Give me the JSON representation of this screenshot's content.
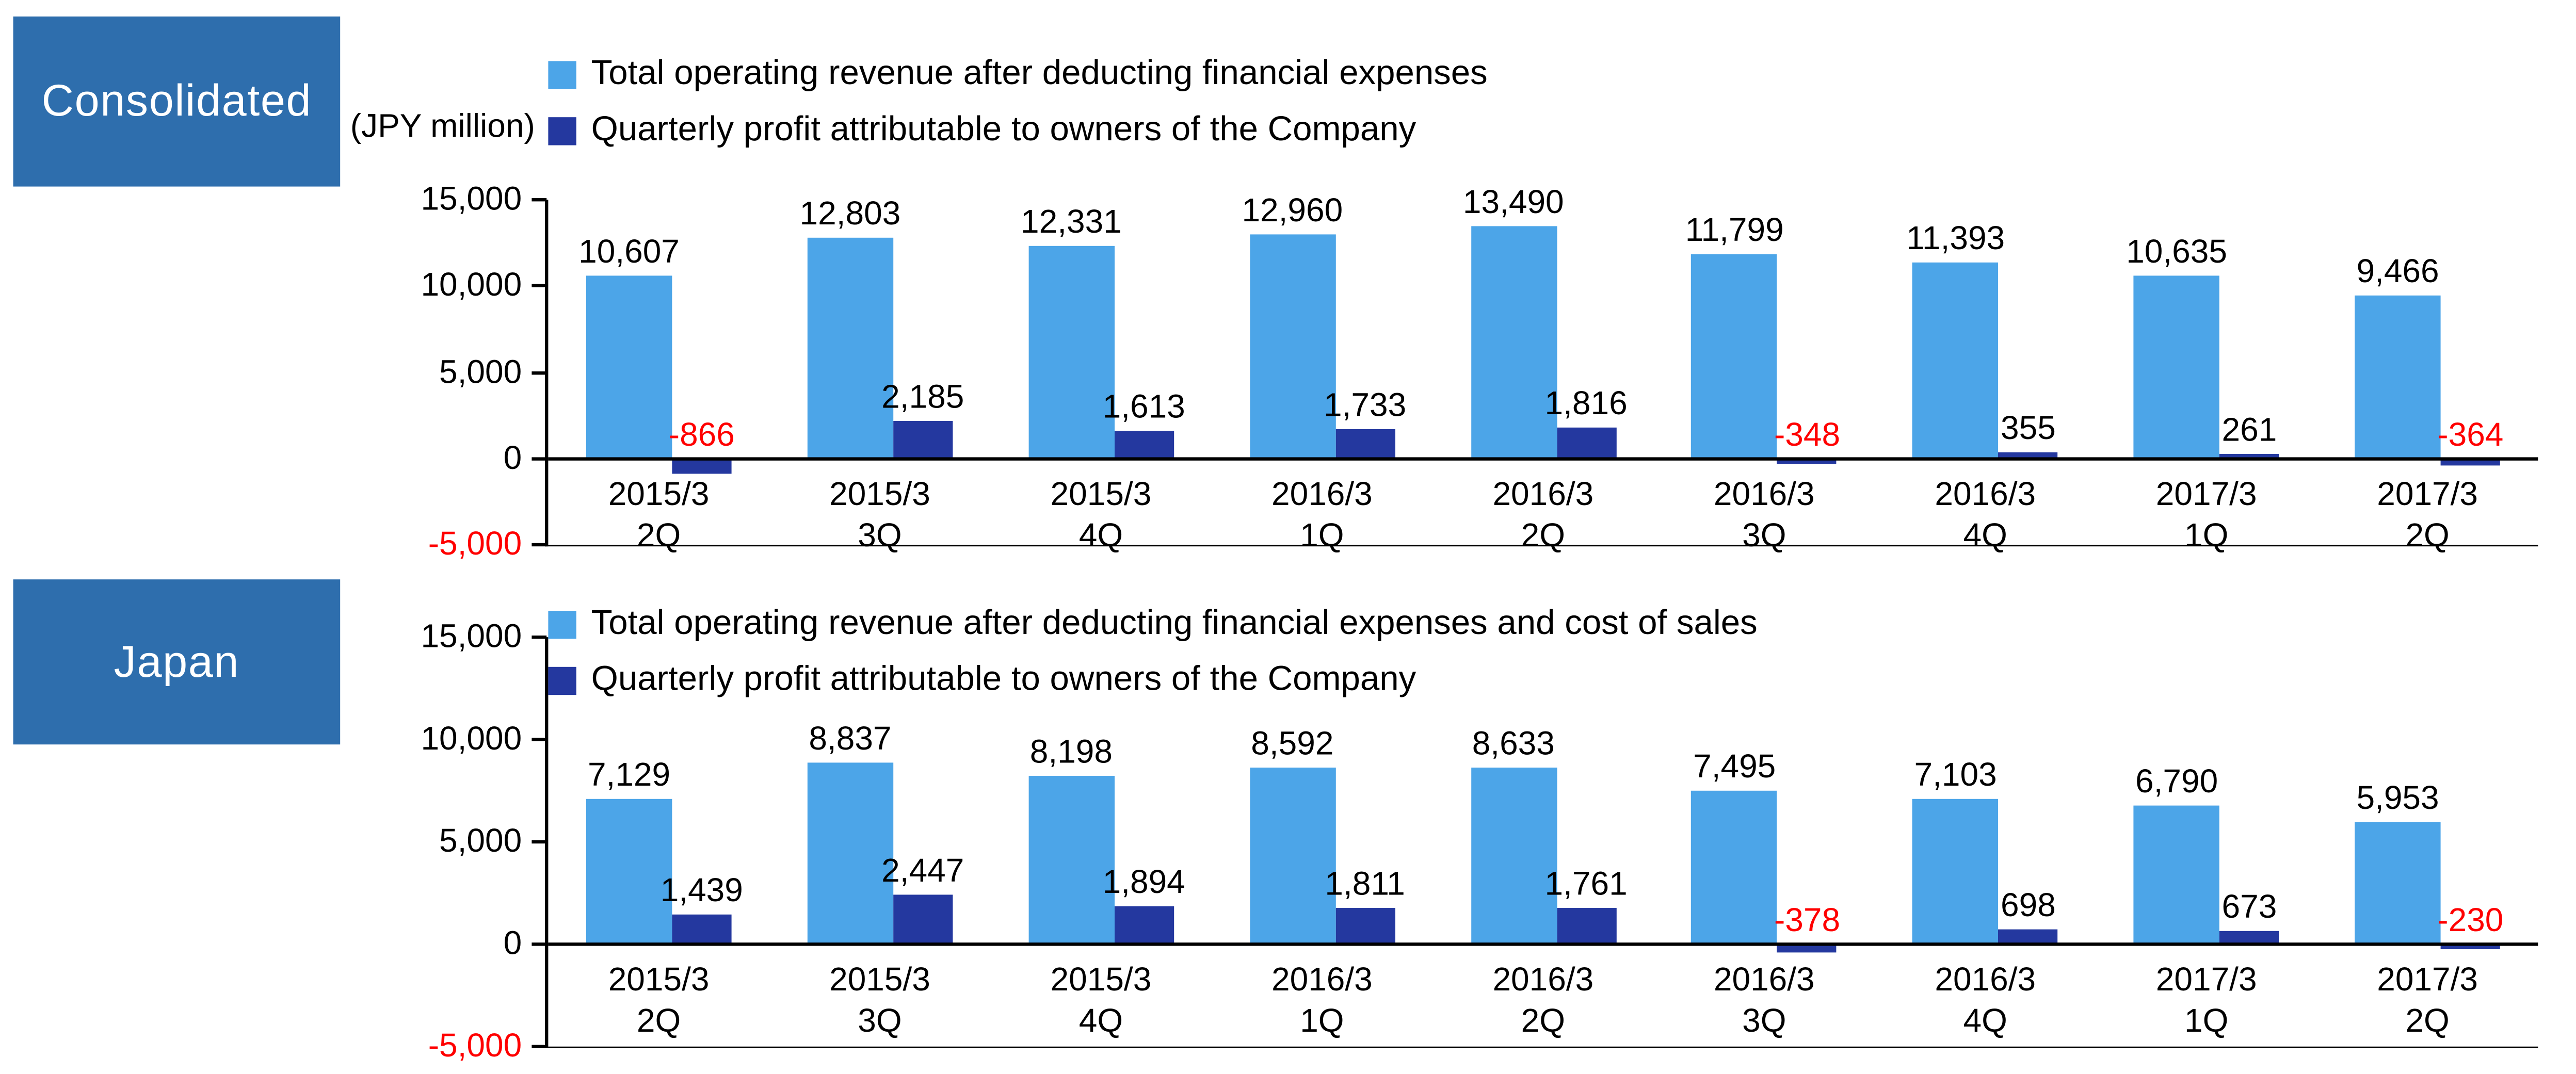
{
  "colors": {
    "revenue_bar": "#4CA5E8",
    "profit_bar": "#24389F",
    "badge_bg": "#2E6EAD",
    "negative_label": "#FF0000",
    "axis": "#000000"
  },
  "chart_data": [
    {
      "type": "bar",
      "title": "Consolidated",
      "unit_label": "(JPY million)",
      "categories": [
        "2015/3 2Q",
        "2015/3 3Q",
        "2015/3 4Q",
        "2016/3 1Q",
        "2016/3 2Q",
        "2016/3 3Q",
        "2016/3 4Q",
        "2017/3 1Q",
        "2017/3 2Q"
      ],
      "series": [
        {
          "name": "Total operating revenue after deducting financial expenses",
          "color": "#4CA5E8",
          "values": [
            10607,
            12803,
            12331,
            12960,
            13490,
            11799,
            11393,
            10635,
            9466
          ]
        },
        {
          "name": "Quarterly profit attributable to owners of the Company",
          "color": "#24389F",
          "values": [
            -866,
            2185,
            1613,
            1733,
            1816,
            -348,
            355,
            261,
            -364
          ]
        }
      ],
      "ylim": [
        -5000,
        15000
      ],
      "yticks": [
        15000,
        10000,
        5000,
        0,
        -5000
      ],
      "grid": false,
      "legend_position": "top-left",
      "negative_label_color": "#FF0000"
    },
    {
      "type": "bar",
      "title": "Japan",
      "unit_label": "",
      "categories": [
        "2015/3 2Q",
        "2015/3 3Q",
        "2015/3 4Q",
        "2016/3 1Q",
        "2016/3 2Q",
        "2016/3 3Q",
        "2016/3 4Q",
        "2017/3 1Q",
        "2017/3 2Q"
      ],
      "series": [
        {
          "name": "Total operating revenue after deducting financial expenses and cost of sales",
          "color": "#4CA5E8",
          "values": [
            7129,
            8837,
            8198,
            8592,
            8633,
            7495,
            7103,
            6790,
            5953
          ]
        },
        {
          "name": "Quarterly profit attributable to owners of the Company",
          "color": "#24389F",
          "values": [
            1439,
            2447,
            1894,
            1811,
            1761,
            -378,
            698,
            673,
            -230
          ]
        }
      ],
      "ylim": [
        -5000,
        15000
      ],
      "yticks": [
        15000,
        10000,
        5000,
        0,
        -5000
      ],
      "grid": false,
      "legend_position": "top-left",
      "negative_label_color": "#FF0000"
    }
  ]
}
